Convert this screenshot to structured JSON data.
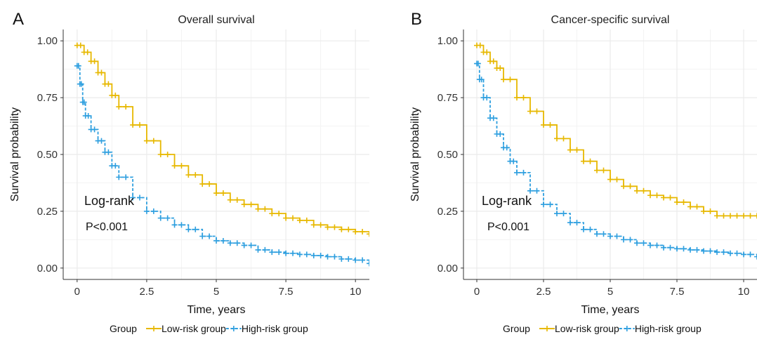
{
  "colors": {
    "low_risk": "#E7B800",
    "high_risk": "#2E9FDF",
    "grid": "#ebebeb",
    "axis": "#333333"
  },
  "legend_title": "Group",
  "chart_data": [
    {
      "panel_label": "A",
      "type": "line",
      "title": "Overall survival",
      "xlabel": "Time, years",
      "ylabel": "Survival probability",
      "xlim": [
        -0.5,
        10.5
      ],
      "ylim": [
        -0.05,
        1.05
      ],
      "x_ticks": [
        "0",
        "2.5",
        "5",
        "7.5",
        "10"
      ],
      "y_ticks": [
        "0.00",
        "0.25",
        "0.50",
        "0.75",
        "1.00"
      ],
      "grid": true,
      "legend_position": "bottom",
      "annotation_title": "Log-rank",
      "annotation_p": "P<0.001",
      "series": [
        {
          "name": "Low-risk group",
          "color": "#E7B800",
          "x": [
            0,
            0.25,
            0.5,
            0.75,
            1,
            1.25,
            1.5,
            2,
            2.5,
            3,
            3.5,
            4,
            4.5,
            5,
            5.5,
            6,
            6.5,
            7,
            7.5,
            8,
            8.5,
            9,
            9.5,
            10,
            10.5
          ],
          "y": [
            0.98,
            0.95,
            0.91,
            0.86,
            0.81,
            0.76,
            0.71,
            0.63,
            0.56,
            0.5,
            0.45,
            0.41,
            0.37,
            0.33,
            0.3,
            0.28,
            0.26,
            0.24,
            0.22,
            0.21,
            0.19,
            0.18,
            0.17,
            0.16,
            0.15
          ]
        },
        {
          "name": "High-risk group",
          "color": "#2E9FDF",
          "x": [
            0,
            0.1,
            0.2,
            0.3,
            0.5,
            0.75,
            1,
            1.25,
            1.5,
            2,
            2.5,
            3,
            3.5,
            4,
            4.5,
            5,
            5.5,
            6,
            6.5,
            7,
            7.5,
            8,
            8.5,
            9,
            9.5,
            10,
            10.5
          ],
          "y": [
            0.89,
            0.81,
            0.73,
            0.67,
            0.61,
            0.56,
            0.51,
            0.45,
            0.4,
            0.31,
            0.25,
            0.22,
            0.19,
            0.17,
            0.14,
            0.12,
            0.11,
            0.1,
            0.08,
            0.07,
            0.065,
            0.06,
            0.055,
            0.05,
            0.04,
            0.035,
            0.02
          ]
        }
      ]
    },
    {
      "panel_label": "B",
      "type": "line",
      "title": "Cancer-specific survival",
      "xlabel": "Time, years",
      "ylabel": "Survival probability",
      "xlim": [
        -0.5,
        10.5
      ],
      "ylim": [
        -0.05,
        1.05
      ],
      "x_ticks": [
        "0",
        "2.5",
        "5",
        "7.5",
        "10"
      ],
      "y_ticks": [
        "0.00",
        "0.25",
        "0.50",
        "0.75",
        "1.00"
      ],
      "grid": true,
      "legend_position": "bottom",
      "annotation_title": "Log-rank",
      "annotation_p": "P<0.001",
      "series": [
        {
          "name": "Low-risk group",
          "color": "#E7B800",
          "x": [
            0,
            0.25,
            0.5,
            0.75,
            1,
            1.5,
            2,
            2.5,
            3,
            3.5,
            4,
            4.5,
            5,
            5.5,
            6,
            6.5,
            7,
            7.5,
            8,
            8.5,
            9,
            9.5,
            10,
            10.5
          ],
          "y": [
            0.98,
            0.95,
            0.91,
            0.88,
            0.83,
            0.75,
            0.69,
            0.63,
            0.57,
            0.52,
            0.47,
            0.43,
            0.39,
            0.36,
            0.34,
            0.32,
            0.31,
            0.29,
            0.27,
            0.25,
            0.23,
            0.23,
            0.23,
            0.23
          ]
        },
        {
          "name": "High-risk group",
          "color": "#2E9FDF",
          "x": [
            0,
            0.1,
            0.25,
            0.5,
            0.75,
            1,
            1.25,
            1.5,
            2,
            2.5,
            3,
            3.5,
            4,
            4.5,
            5,
            5.5,
            6,
            6.5,
            7,
            7.5,
            8,
            8.5,
            9,
            9.5,
            10,
            10.5
          ],
          "y": [
            0.9,
            0.83,
            0.75,
            0.66,
            0.59,
            0.53,
            0.47,
            0.42,
            0.34,
            0.28,
            0.24,
            0.2,
            0.17,
            0.15,
            0.14,
            0.125,
            0.11,
            0.1,
            0.09,
            0.085,
            0.08,
            0.075,
            0.07,
            0.065,
            0.06,
            0.05
          ]
        }
      ]
    }
  ]
}
